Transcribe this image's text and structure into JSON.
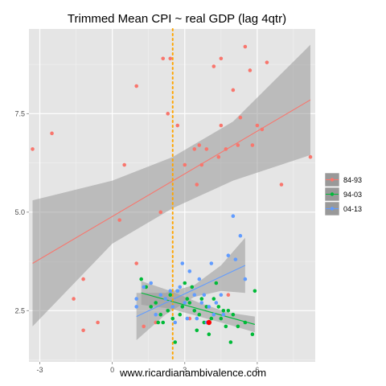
{
  "chart_data": {
    "type": "scatter",
    "title": "Trimmed Mean CPI ~ real GDP (lag 4qtr)",
    "xlabel": "www.ricardianambivalence.com",
    "ylabel": "",
    "xlim": [
      -3.45,
      8.4
    ],
    "ylim": [
      1.2,
      9.65
    ],
    "x_ticks": [
      -3,
      0,
      3,
      6
    ],
    "x_tick_labels": [
      "-3",
      "0",
      "3",
      "6"
    ],
    "y_ticks": [
      2.5,
      5.0,
      7.5
    ],
    "y_tick_labels": [
      "2.5",
      "5.0",
      "7.5"
    ],
    "grid": true,
    "legend_position": "right",
    "vline": {
      "x": 2.5,
      "color": "#ffa500",
      "style": "dotted"
    },
    "series": [
      {
        "name": "84-93",
        "color": "#f8766d",
        "points": [
          [
            -3.3,
            6.6
          ],
          [
            -2.5,
            7.0
          ],
          [
            -1.6,
            2.8
          ],
          [
            -1.2,
            3.3
          ],
          [
            -1.2,
            2.0
          ],
          [
            -0.6,
            2.2
          ],
          [
            0.3,
            4.8
          ],
          [
            0.5,
            6.2
          ],
          [
            1.0,
            8.2
          ],
          [
            1.0,
            3.7
          ],
          [
            1.3,
            2.1
          ],
          [
            1.8,
            2.2
          ],
          [
            2.0,
            5.0
          ],
          [
            2.1,
            8.9
          ],
          [
            2.3,
            7.5
          ],
          [
            2.4,
            8.9
          ],
          [
            2.7,
            7.2
          ],
          [
            3.0,
            6.2
          ],
          [
            3.2,
            2.3
          ],
          [
            3.4,
            6.6
          ],
          [
            3.5,
            5.7
          ],
          [
            3.6,
            6.7
          ],
          [
            3.7,
            6.2
          ],
          [
            3.9,
            6.6
          ],
          [
            4.2,
            8.7
          ],
          [
            4.4,
            6.4
          ],
          [
            4.5,
            8.9
          ],
          [
            4.5,
            7.2
          ],
          [
            4.7,
            6.6
          ],
          [
            4.8,
            2.9
          ],
          [
            5.0,
            8.1
          ],
          [
            5.2,
            6.7
          ],
          [
            5.3,
            7.4
          ],
          [
            5.5,
            9.2
          ],
          [
            5.7,
            8.6
          ],
          [
            5.8,
            6.7
          ],
          [
            6.0,
            7.2
          ],
          [
            6.2,
            7.1
          ],
          [
            6.4,
            8.8
          ],
          [
            7.0,
            5.7
          ],
          [
            8.2,
            6.4
          ]
        ],
        "fit": {
          "line": [
            [
              -3.3,
              3.7
            ],
            [
              8.2,
              7.85
            ]
          ],
          "band_upper": [
            [
              -3.3,
              5.3
            ],
            [
              0,
              5.8
            ],
            [
              2.5,
              6.4
            ],
            [
              5,
              7.3
            ],
            [
              8.2,
              9.25
            ]
          ],
          "band_lower": [
            [
              -3.3,
              2.1
            ],
            [
              0,
              4.2
            ],
            [
              2.5,
              5.1
            ],
            [
              5,
              5.8
            ],
            [
              8.2,
              6.45
            ]
          ]
        }
      },
      {
        "name": "94-03",
        "color": "#00ba38",
        "points": [
          [
            1.2,
            3.3
          ],
          [
            1.4,
            3.1
          ],
          [
            1.6,
            2.6
          ],
          [
            1.8,
            2.7
          ],
          [
            1.9,
            2.2
          ],
          [
            2.0,
            2.4
          ],
          [
            2.1,
            2.2
          ],
          [
            2.3,
            2.5
          ],
          [
            2.4,
            2.9
          ],
          [
            2.5,
            2.3
          ],
          [
            2.6,
            1.7
          ],
          [
            2.7,
            3.0
          ],
          [
            2.8,
            2.4
          ],
          [
            2.9,
            2.6
          ],
          [
            3.0,
            3.2
          ],
          [
            3.1,
            2.8
          ],
          [
            3.2,
            2.7
          ],
          [
            3.3,
            3.1
          ],
          [
            3.4,
            2.5
          ],
          [
            3.5,
            2.0
          ],
          [
            3.6,
            2.4
          ],
          [
            3.7,
            2.8
          ],
          [
            3.8,
            2.2
          ],
          [
            3.9,
            2.6
          ],
          [
            4.0,
            1.9
          ],
          [
            4.1,
            2.3
          ],
          [
            4.2,
            2.8
          ],
          [
            4.3,
            3.2
          ],
          [
            4.4,
            2.6
          ],
          [
            4.5,
            2.3
          ],
          [
            4.6,
            2.5
          ],
          [
            4.7,
            2.1
          ],
          [
            4.8,
            2.5
          ],
          [
            4.9,
            1.7
          ],
          [
            5.0,
            2.4
          ],
          [
            5.2,
            2.1
          ],
          [
            5.5,
            2.2
          ],
          [
            5.8,
            1.9
          ],
          [
            5.9,
            3.0
          ]
        ],
        "fit": {
          "line": [
            [
              1.2,
              2.95
            ],
            [
              5.9,
              2.15
            ]
          ],
          "band_upper": [
            [
              1.2,
              3.25
            ],
            [
              2.4,
              3.0
            ],
            [
              3.6,
              2.7
            ],
            [
              4.8,
              2.45
            ],
            [
              5.9,
              2.35
            ]
          ],
          "band_lower": [
            [
              1.2,
              2.65
            ],
            [
              2.4,
              2.55
            ],
            [
              3.6,
              2.35
            ],
            [
              4.8,
              2.15
            ],
            [
              5.9,
              1.95
            ]
          ]
        }
      },
      {
        "name": "04-13",
        "color": "#619cff",
        "points": [
          [
            1.0,
            2.8
          ],
          [
            1.0,
            2.6
          ],
          [
            1.3,
            3.1
          ],
          [
            1.6,
            3.2
          ],
          [
            1.8,
            2.4
          ],
          [
            2.0,
            2.9
          ],
          [
            2.2,
            2.8
          ],
          [
            2.4,
            3.0
          ],
          [
            2.5,
            2.6
          ],
          [
            2.6,
            2.2
          ],
          [
            2.7,
            3.0
          ],
          [
            2.8,
            3.1
          ],
          [
            2.9,
            3.7
          ],
          [
            3.0,
            2.7
          ],
          [
            3.1,
            2.3
          ],
          [
            3.2,
            3.5
          ],
          [
            3.4,
            2.9
          ],
          [
            3.5,
            2.3
          ],
          [
            3.6,
            3.3
          ],
          [
            3.7,
            2.7
          ],
          [
            3.8,
            2.9
          ],
          [
            3.9,
            2.2
          ],
          [
            4.0,
            2.6
          ],
          [
            4.1,
            3.7
          ],
          [
            4.2,
            2.4
          ],
          [
            4.3,
            2.7
          ],
          [
            4.5,
            2.9
          ],
          [
            4.6,
            2.4
          ],
          [
            4.8,
            3.9
          ],
          [
            5.0,
            4.9
          ],
          [
            5.1,
            3.8
          ],
          [
            5.3,
            4.4
          ],
          [
            5.5,
            3.3
          ]
        ],
        "fit": {
          "line": [
            [
              1.0,
              2.35
            ],
            [
              5.5,
              3.65
            ]
          ],
          "band_upper": [
            [
              1.0,
              2.95
            ],
            [
              2.2,
              2.95
            ],
            [
              3.4,
              3.15
            ],
            [
              4.5,
              3.65
            ],
            [
              5.5,
              4.35
            ]
          ],
          "band_lower": [
            [
              1.0,
              1.75
            ],
            [
              2.2,
              2.4
            ],
            [
              3.4,
              2.85
            ],
            [
              4.5,
              3.0
            ],
            [
              5.5,
              2.95
            ]
          ]
        }
      }
    ],
    "highlight": {
      "x": 4.0,
      "y": 2.2,
      "color": "#ff0000"
    }
  }
}
